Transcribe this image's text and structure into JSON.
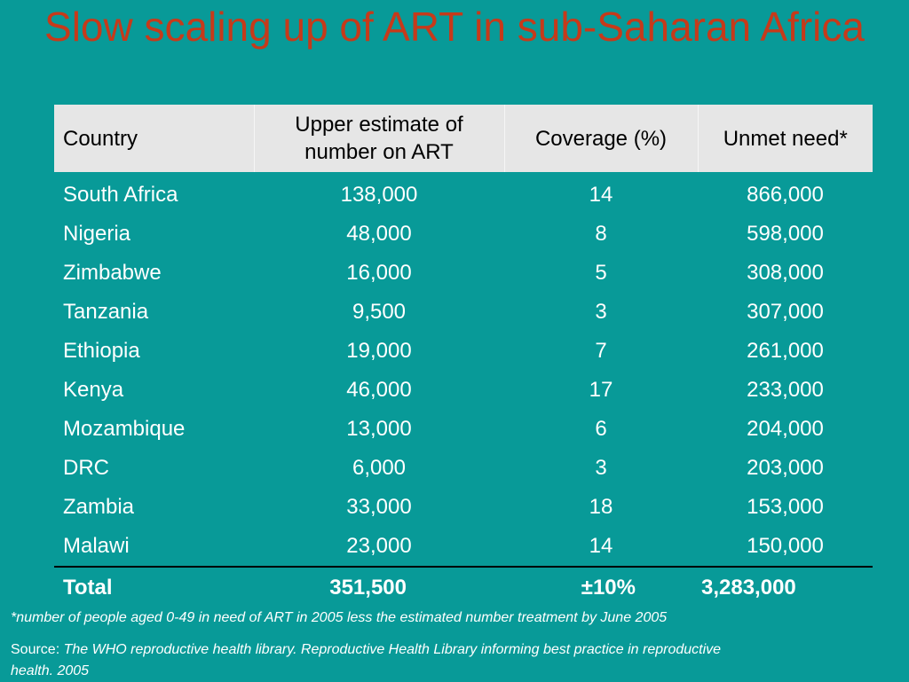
{
  "title": "Slow scaling up  of ART in sub-Saharan Africa",
  "table": {
    "headers": [
      "Country",
      "Upper estimate of number on ART",
      "Coverage (%)",
      "Unmet need*"
    ],
    "rows": [
      [
        "South Africa",
        "138,000",
        "14",
        "866,000"
      ],
      [
        "Nigeria",
        "48,000",
        "8",
        "598,000"
      ],
      [
        "Zimbabwe",
        "16,000",
        "5",
        "308,000"
      ],
      [
        "Tanzania",
        "9,500",
        "3",
        "307,000"
      ],
      [
        "Ethiopia",
        "19,000",
        "7",
        "261,000"
      ],
      [
        "Kenya",
        "46,000",
        "17",
        "233,000"
      ],
      [
        "Mozambique",
        "13,000",
        "6",
        "204,000"
      ],
      [
        "DRC",
        "6,000",
        "3",
        "203,000"
      ],
      [
        "Zambia",
        "33,000",
        "18",
        "153,000"
      ],
      [
        "Malawi",
        "23,000",
        "14",
        "150,000"
      ]
    ],
    "total": [
      "Total",
      "351,500",
      "±10%",
      "3,283,000"
    ]
  },
  "footnote": "*number of people aged 0-49 in need of ART in 2005 less the estimated number treatment by June 2005",
  "source": {
    "label": "Source: ",
    "text": "The WHO reproductive health library. Reproductive Health Library  informing best practice in reproductive health. 2005"
  },
  "colors": {
    "background": "#089a98",
    "title": "#c63a1a",
    "header_background": "#e6e6e6",
    "body_text": "#ffffff"
  }
}
